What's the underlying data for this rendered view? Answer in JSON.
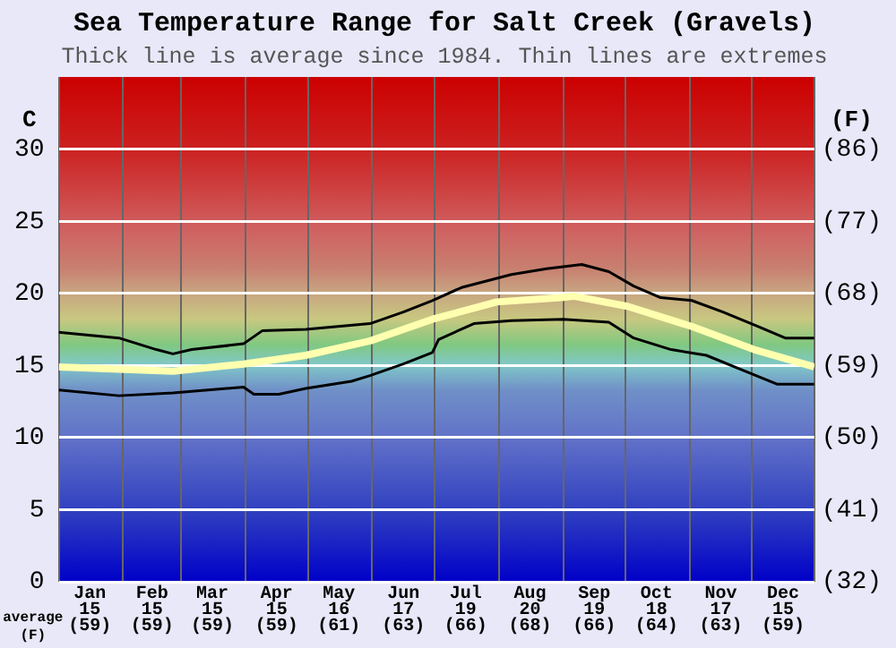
{
  "chart_data": {
    "type": "line",
    "title": "Sea Temperature Range for Salt Creek (Gravels)",
    "subtitle": "Thick line is average since 1984. Thin lines are extremes",
    "ylabel": "C",
    "y2label": "(F)",
    "annotations": [
      "average\n(F)"
    ],
    "xlim": [
      "--01-01",
      "--12-31"
    ],
    "xticks": [
      {
        "value": "--01-01",
        "label": null
      },
      {
        "value": "--01-16",
        "label": "Jan\n15\n(59)"
      },
      {
        "value": "--02-01",
        "label": null
      },
      {
        "value": "--02-15",
        "label": "Feb\n15\n(59)"
      },
      {
        "value": "--03-01",
        "label": null
      },
      {
        "value": "--03-16",
        "label": "Mar\n15\n(59)"
      },
      {
        "value": "--04-01",
        "label": null
      },
      {
        "value": "--04-16",
        "label": "Apr\n15\n(59)"
      },
      {
        "value": "--05-01",
        "label": null
      },
      {
        "value": "--05-16",
        "label": "May\n16\n(61)"
      },
      {
        "value": "--06-01",
        "label": null
      },
      {
        "value": "--06-16",
        "label": "Jun\n17\n(63)"
      },
      {
        "value": "--07-01",
        "label": null
      },
      {
        "value": "--07-16",
        "label": "Jul\n19\n(66)"
      },
      {
        "value": "--08-01",
        "label": null
      },
      {
        "value": "--08-16",
        "label": "Aug\n20\n(68)"
      },
      {
        "value": "--09-01",
        "label": null
      },
      {
        "value": "--09-16",
        "label": "Sep\n19\n(66)"
      },
      {
        "value": "--10-01",
        "label": null
      },
      {
        "value": "--10-16",
        "label": "Oct\n18\n(64)"
      },
      {
        "value": "--11-01",
        "label": null
      },
      {
        "value": "--11-16",
        "label": "Nov\n17\n(63)"
      },
      {
        "value": "--12-01",
        "label": null
      },
      {
        "value": "--12-16",
        "label": "Dec\n15\n(59)"
      },
      {
        "value": "--12-31",
        "label": null
      }
    ],
    "ylim": [
      0,
      35
    ],
    "yticks": [
      0,
      5,
      10,
      15,
      20,
      25,
      30
    ],
    "y2lim": [
      32,
      95
    ],
    "y2ticks": [
      {
        "value": 32,
        "label": "(32)"
      },
      {
        "value": 41,
        "label": "(41)"
      },
      {
        "value": 50,
        "label": "(50)"
      },
      {
        "value": 59,
        "label": "(59)"
      },
      {
        "value": 68,
        "label": "(68)"
      },
      {
        "value": 77,
        "label": "(77)"
      },
      {
        "value": 86,
        "label": "(86)"
      }
    ],
    "grid": true,
    "legend": false,
    "series": [
      {
        "color": "#000000",
        "x": [
          "--01-01",
          "--01-30",
          "--02-17",
          "--02-25",
          "--03-06",
          "--03-31",
          "--04-09",
          "--04-30",
          "--05-31",
          "--06-16",
          "--06-30",
          "--07-14",
          "--08-07",
          "--08-24",
          "--09-10",
          "--09-23",
          "--10-05",
          "--10-18",
          "--11-02",
          "--11-17",
          "--12-04",
          "--12-17",
          "--12-31"
        ],
        "values": [
          17.3,
          16.9,
          16.1,
          15.8,
          16.1,
          16.5,
          17.4,
          17.5,
          17.9,
          18.7,
          19.5,
          20.4,
          21.3,
          21.7,
          22.0,
          21.5,
          20.5,
          19.7,
          19.5,
          18.7,
          17.7,
          16.9,
          16.9
        ]
      },
      {
        "color": "#ffffb0",
        "x": [
          "--01-01",
          "--02-25",
          "--03-31",
          "--04-30",
          "--05-31",
          "--06-30",
          "--07-31",
          "--08-31",
          "--09-06",
          "--10-02",
          "--11-02",
          "--12-02",
          "--12-31"
        ],
        "values": [
          14.9,
          14.6,
          15.1,
          15.7,
          16.7,
          18.2,
          19.4,
          19.7,
          19.8,
          19.1,
          17.7,
          16.1,
          14.9
        ]
      },
      {
        "color": "#000000",
        "x": [
          "--01-01",
          "--01-30",
          "--02-25",
          "--03-31",
          "--04-05",
          "--04-17",
          "--04-30",
          "--05-22",
          "--05-31",
          "--06-16",
          "--06-30",
          "--07-03",
          "--07-20",
          "--08-07",
          "--09-01",
          "--09-23",
          "--10-05",
          "--10-23",
          "--11-09",
          "--11-26",
          "--12-13",
          "--12-31"
        ],
        "values": [
          13.3,
          12.9,
          13.1,
          13.5,
          13.0,
          13.0,
          13.4,
          13.9,
          14.3,
          15.1,
          15.9,
          16.8,
          17.9,
          18.1,
          18.2,
          18.0,
          16.9,
          16.1,
          15.7,
          14.7,
          13.7,
          13.7
        ]
      }
    ]
  }
}
